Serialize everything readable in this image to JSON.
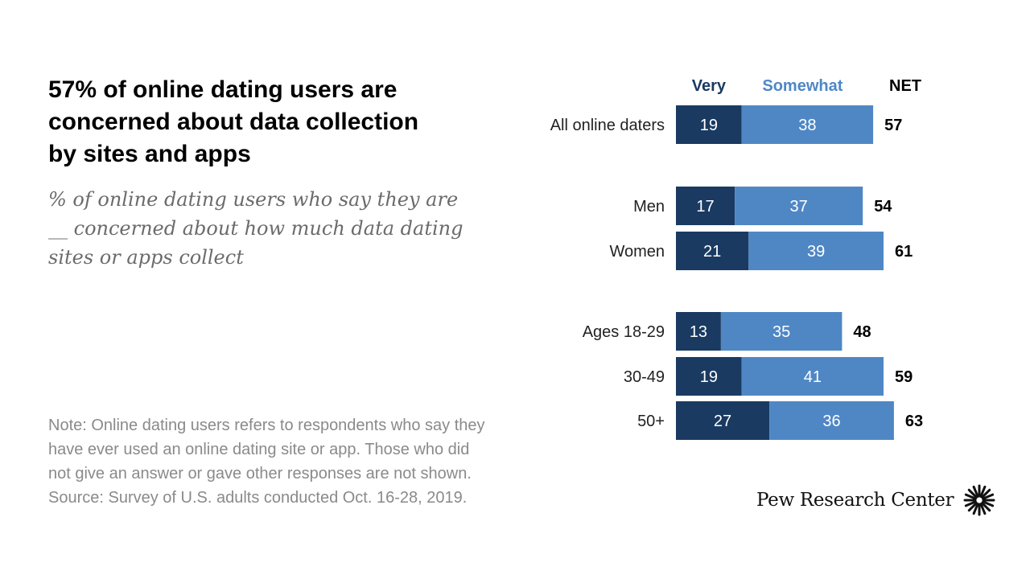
{
  "header": {
    "title_lines": [
      "57% of online dating users are",
      "concerned about data collection",
      "by sites and apps"
    ],
    "subtitle_lines": [
      "% of online dating users who say they are",
      "__ concerned about how much data dating",
      "sites or apps collect"
    ]
  },
  "note_lines": [
    "Note: Online dating users refers to respondents who say they",
    "have ever used an online dating site or app. Those who did",
    "not give an answer or gave other responses are not shown.",
    "Source: Survey of U.S. adults conducted Oct. 16-28, 2019."
  ],
  "brand": {
    "name": "Pew Research Center",
    "logo": "pew-sunburst-logo"
  },
  "colors": {
    "very": "#1a3a61",
    "somewhat": "#4f87c5",
    "very_header": "#1a3a61",
    "somewhat_header": "#4f87c5",
    "bar_text": "#ffffff",
    "net_text": "#000000"
  },
  "chart_data": {
    "type": "bar",
    "orientation": "horizontal",
    "stacked": true,
    "column_headers": {
      "very": "Very",
      "somewhat": "Somewhat",
      "net": "NET"
    },
    "categories": [
      "All online daters",
      "Men",
      "Women",
      "Ages 18-29",
      "30-49",
      "50+"
    ],
    "groups": [
      [
        "All online daters"
      ],
      [
        "Men",
        "Women"
      ],
      [
        "Ages 18-29",
        "30-49",
        "50+"
      ]
    ],
    "series": [
      {
        "name": "Very",
        "values": [
          19,
          17,
          21,
          13,
          19,
          27
        ]
      },
      {
        "name": "Somewhat",
        "values": [
          38,
          37,
          39,
          35,
          41,
          36
        ]
      }
    ],
    "net": [
      57,
      54,
      61,
      48,
      59,
      63
    ],
    "xlim": [
      0,
      63
    ],
    "grid": false,
    "legend": "column headers above bars"
  }
}
